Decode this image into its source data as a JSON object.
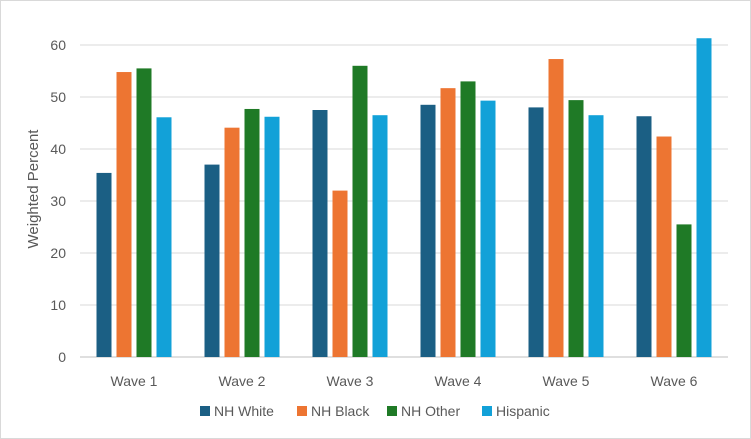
{
  "chart_data": {
    "type": "bar",
    "title": "",
    "xlabel": "",
    "ylabel": "Weighted Percent",
    "ylim": [
      0,
      60
    ],
    "yticks": [
      0,
      10,
      20,
      30,
      40,
      50,
      60
    ],
    "grid": true,
    "legend_position": "bottom",
    "categories": [
      "Wave 1",
      "Wave 2",
      "Wave 3",
      "Wave 4",
      "Wave 5",
      "Wave 6"
    ],
    "series": [
      {
        "name": "NH White",
        "color": "#1b5f84",
        "values": [
          35.4,
          37.0,
          47.5,
          48.5,
          48.0,
          46.3
        ]
      },
      {
        "name": "NH Black",
        "color": "#ed7532",
        "values": [
          54.8,
          44.1,
          32.0,
          51.7,
          57.3,
          42.4
        ]
      },
      {
        "name": "NH Other",
        "color": "#1f7a26",
        "values": [
          55.5,
          47.7,
          56.0,
          53.0,
          49.4,
          25.5
        ]
      },
      {
        "name": "Hispanic",
        "color": "#12a1d8",
        "values": [
          46.1,
          46.2,
          46.5,
          49.3,
          46.5,
          61.3
        ]
      }
    ]
  }
}
